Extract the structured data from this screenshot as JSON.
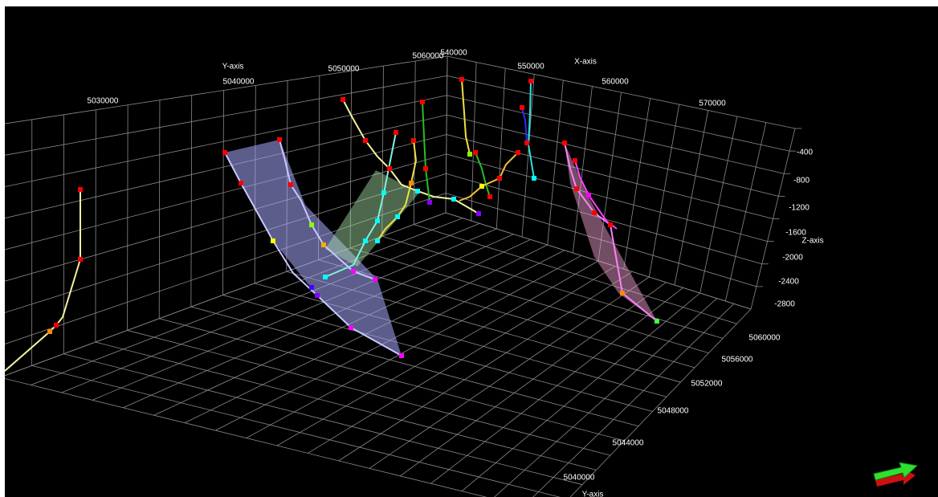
{
  "axes": {
    "y_axis_top": {
      "label": "Y-axis",
      "ticks": [
        "5030000",
        "5040000",
        "5050000",
        "5060000"
      ]
    },
    "x_axis_top": {
      "label": "X-axis",
      "ticks": [
        "540000",
        "550000",
        "560000",
        "570000"
      ]
    },
    "z_axis": {
      "label": "Z-axis",
      "ticks": [
        "-400",
        "-800",
        "-1200",
        "-1600",
        "-2000",
        "-2400",
        "-2800"
      ]
    },
    "y_axis_right": {
      "label": "Y-axis",
      "ticks": [
        "5060000",
        "5056000",
        "5052000",
        "5048000",
        "5044000",
        "5040000"
      ]
    }
  }
}
